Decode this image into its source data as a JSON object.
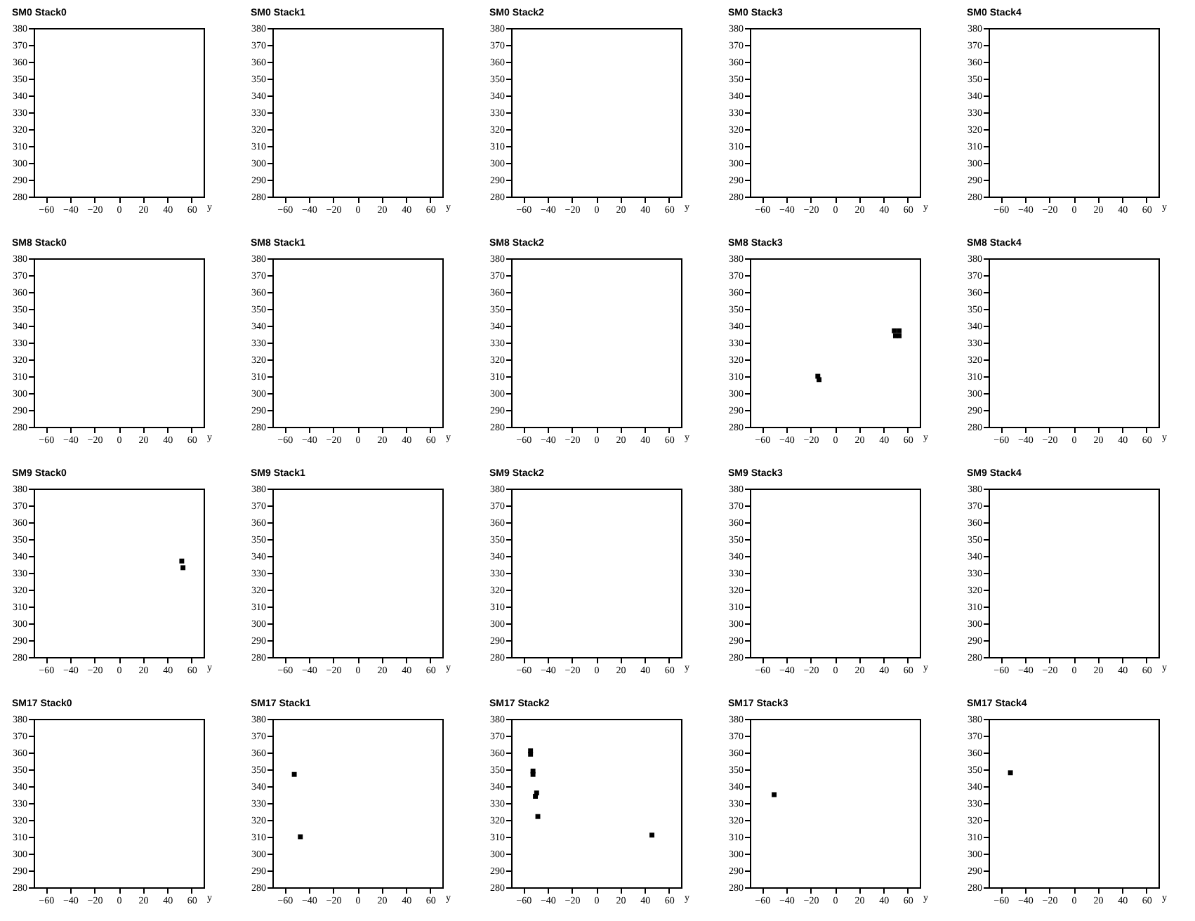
{
  "chart_data": [
    {
      "type": "scatter",
      "title": "SM0 Stack0",
      "xlabel": "y",
      "color": "#000000",
      "marker": "square",
      "xlim": [
        -70,
        70
      ],
      "xticks": [
        -60,
        -40,
        -20,
        0,
        20,
        40,
        60
      ],
      "ylim": [
        280,
        380
      ],
      "yticks": [
        280,
        290,
        300,
        310,
        320,
        330,
        340,
        350,
        360,
        370,
        380
      ]
    },
    {
      "type": "scatter",
      "title": "SM0 Stack1",
      "xlabel": "y",
      "color": "#000000",
      "marker": "square",
      "xlim": [
        -70,
        70
      ],
      "xticks": [
        -60,
        -40,
        -20,
        0,
        20,
        40,
        60
      ],
      "ylim": [
        280,
        380
      ],
      "yticks": [
        280,
        290,
        300,
        310,
        320,
        330,
        340,
        350,
        360,
        370,
        380
      ]
    },
    {
      "type": "scatter",
      "title": "SM0 Stack2",
      "xlabel": "y",
      "color": "#000000",
      "marker": "square",
      "xlim": [
        -70,
        70
      ],
      "xticks": [
        -60,
        -40,
        -20,
        0,
        20,
        40,
        60
      ],
      "ylim": [
        280,
        380
      ],
      "yticks": [
        280,
        290,
        300,
        310,
        320,
        330,
        340,
        350,
        360,
        370,
        380
      ]
    },
    {
      "type": "scatter",
      "title": "SM0 Stack3",
      "xlabel": "y",
      "color": "#000000",
      "marker": "square",
      "xlim": [
        -70,
        70
      ],
      "xticks": [
        -60,
        -40,
        -20,
        0,
        20,
        40,
        60
      ],
      "ylim": [
        280,
        380
      ],
      "yticks": [
        280,
        290,
        300,
        310,
        320,
        330,
        340,
        350,
        360,
        370,
        380
      ]
    },
    {
      "type": "scatter",
      "title": "SM0 Stack4",
      "xlabel": "y",
      "color": "#000000",
      "marker": "square",
      "xlim": [
        -70,
        70
      ],
      "xticks": [
        -60,
        -40,
        -20,
        0,
        20,
        40,
        60
      ],
      "ylim": [
        280,
        380
      ],
      "yticks": [
        280,
        290,
        300,
        310,
        320,
        330,
        340,
        350,
        360,
        370,
        380
      ]
    },
    {
      "type": "scatter",
      "title": "SM8 Stack0",
      "xlabel": "y",
      "color": "#000000",
      "marker": "square",
      "xlim": [
        -70,
        70
      ],
      "xticks": [
        -60,
        -40,
        -20,
        0,
        20,
        40,
        60
      ],
      "ylim": [
        280,
        380
      ],
      "yticks": [
        280,
        290,
        300,
        310,
        320,
        330,
        340,
        350,
        360,
        370,
        380
      ]
    },
    {
      "type": "scatter",
      "title": "SM8 Stack1",
      "xlabel": "y",
      "color": "#000000",
      "marker": "square",
      "xlim": [
        -70,
        70
      ],
      "xticks": [
        -60,
        -40,
        -20,
        0,
        20,
        40,
        60
      ],
      "ylim": [
        280,
        380
      ],
      "yticks": [
        280,
        290,
        300,
        310,
        320,
        330,
        340,
        350,
        360,
        370,
        380
      ]
    },
    {
      "type": "scatter",
      "title": "SM8 Stack2",
      "xlabel": "y",
      "color": "#000000",
      "marker": "square",
      "xlim": [
        -70,
        70
      ],
      "xticks": [
        -60,
        -40,
        -20,
        0,
        20,
        40,
        60
      ],
      "ylim": [
        280,
        380
      ],
      "yticks": [
        280,
        290,
        300,
        310,
        320,
        330,
        340,
        350,
        360,
        370,
        380
      ]
    },
    {
      "type": "scatter",
      "title": "SM8 Stack3",
      "xlabel": "y",
      "x": [
        -14,
        -13,
        49,
        53,
        50,
        53
      ],
      "values": [
        310,
        308,
        337,
        337,
        334,
        334
      ],
      "color": "#000000",
      "marker": "square",
      "xlim": [
        -70,
        70
      ],
      "xticks": [
        -60,
        -40,
        -20,
        0,
        20,
        40,
        60
      ],
      "ylim": [
        280,
        380
      ],
      "yticks": [
        280,
        290,
        300,
        310,
        320,
        330,
        340,
        350,
        360,
        370,
        380
      ]
    },
    {
      "type": "scatter",
      "title": "SM8 Stack4",
      "xlabel": "y",
      "color": "#000000",
      "marker": "square",
      "xlim": [
        -70,
        70
      ],
      "xticks": [
        -60,
        -40,
        -20,
        0,
        20,
        40,
        60
      ],
      "ylim": [
        280,
        380
      ],
      "yticks": [
        280,
        290,
        300,
        310,
        320,
        330,
        340,
        350,
        360,
        370,
        380
      ]
    },
    {
      "type": "scatter",
      "title": "SM9 Stack0",
      "xlabel": "y",
      "x": [
        52,
        53
      ],
      "values": [
        337,
        333
      ],
      "color": "#000000",
      "marker": "square",
      "xlim": [
        -70,
        70
      ],
      "xticks": [
        -60,
        -40,
        -20,
        0,
        20,
        40,
        60
      ],
      "ylim": [
        280,
        380
      ],
      "yticks": [
        280,
        290,
        300,
        310,
        320,
        330,
        340,
        350,
        360,
        370,
        380
      ]
    },
    {
      "type": "scatter",
      "title": "SM9 Stack1",
      "xlabel": "y",
      "color": "#000000",
      "marker": "square",
      "xlim": [
        -70,
        70
      ],
      "xticks": [
        -60,
        -40,
        -20,
        0,
        20,
        40,
        60
      ],
      "ylim": [
        280,
        380
      ],
      "yticks": [
        280,
        290,
        300,
        310,
        320,
        330,
        340,
        350,
        360,
        370,
        380
      ]
    },
    {
      "type": "scatter",
      "title": "SM9 Stack2",
      "xlabel": "y",
      "color": "#000000",
      "marker": "square",
      "xlim": [
        -70,
        70
      ],
      "xticks": [
        -60,
        -40,
        -20,
        0,
        20,
        40,
        60
      ],
      "ylim": [
        280,
        380
      ],
      "yticks": [
        280,
        290,
        300,
        310,
        320,
        330,
        340,
        350,
        360,
        370,
        380
      ]
    },
    {
      "type": "scatter",
      "title": "SM9 Stack3",
      "xlabel": "y",
      "color": "#000000",
      "marker": "square",
      "xlim": [
        -70,
        70
      ],
      "xticks": [
        -60,
        -40,
        -20,
        0,
        20,
        40,
        60
      ],
      "ylim": [
        280,
        380
      ],
      "yticks": [
        280,
        290,
        300,
        310,
        320,
        330,
        340,
        350,
        360,
        370,
        380
      ]
    },
    {
      "type": "scatter",
      "title": "SM9 Stack4",
      "xlabel": "y",
      "color": "#000000",
      "marker": "square",
      "xlim": [
        -70,
        70
      ],
      "xticks": [
        -60,
        -40,
        -20,
        0,
        20,
        40,
        60
      ],
      "ylim": [
        280,
        380
      ],
      "yticks": [
        280,
        290,
        300,
        310,
        320,
        330,
        340,
        350,
        360,
        370,
        380
      ]
    },
    {
      "type": "scatter",
      "title": "SM17 Stack0",
      "xlabel": "y",
      "color": "#000000",
      "marker": "square",
      "xlim": [
        -70,
        70
      ],
      "xticks": [
        -60,
        -40,
        -20,
        0,
        20,
        40,
        60
      ],
      "ylim": [
        280,
        380
      ],
      "yticks": [
        280,
        290,
        300,
        310,
        320,
        330,
        340,
        350,
        360,
        370,
        380
      ]
    },
    {
      "type": "scatter",
      "title": "SM17 Stack1",
      "xlabel": "y",
      "x": [
        -52,
        -47
      ],
      "values": [
        347,
        310
      ],
      "color": "#000000",
      "marker": "square",
      "xlim": [
        -70,
        70
      ],
      "xticks": [
        -60,
        -40,
        -20,
        0,
        20,
        40,
        60
      ],
      "ylim": [
        280,
        380
      ],
      "yticks": [
        280,
        290,
        300,
        310,
        320,
        330,
        340,
        350,
        360,
        370,
        380
      ]
    },
    {
      "type": "scatter",
      "title": "SM17 Stack2",
      "xlabel": "y",
      "x": [
        -54,
        -54,
        -52,
        -52,
        -49,
        -50,
        -48,
        46
      ],
      "values": [
        361,
        359,
        349,
        347,
        336,
        334,
        322,
        311
      ],
      "color": "#000000",
      "marker": "square",
      "xlim": [
        -70,
        70
      ],
      "xticks": [
        -60,
        -40,
        -20,
        0,
        20,
        40,
        60
      ],
      "ylim": [
        280,
        380
      ],
      "yticks": [
        280,
        290,
        300,
        310,
        320,
        330,
        340,
        350,
        360,
        370,
        380
      ]
    },
    {
      "type": "scatter",
      "title": "SM17 Stack3",
      "xlabel": "y",
      "x": [
        -50
      ],
      "values": [
        335
      ],
      "color": "#000000",
      "marker": "square",
      "xlim": [
        -70,
        70
      ],
      "xticks": [
        -60,
        -40,
        -20,
        0,
        20,
        40,
        60
      ],
      "ylim": [
        280,
        380
      ],
      "yticks": [
        280,
        290,
        300,
        310,
        320,
        330,
        340,
        350,
        360,
        370,
        380
      ]
    },
    {
      "type": "scatter",
      "title": "SM17 Stack4",
      "xlabel": "y",
      "x": [
        -52
      ],
      "values": [
        348
      ],
      "color": "#000000",
      "marker": "square",
      "xlim": [
        -70,
        70
      ],
      "xticks": [
        -60,
        -40,
        -20,
        0,
        20,
        40,
        60
      ],
      "ylim": [
        280,
        380
      ],
      "yticks": [
        280,
        290,
        300,
        310,
        320,
        330,
        340,
        350,
        360,
        370,
        380
      ]
    }
  ]
}
